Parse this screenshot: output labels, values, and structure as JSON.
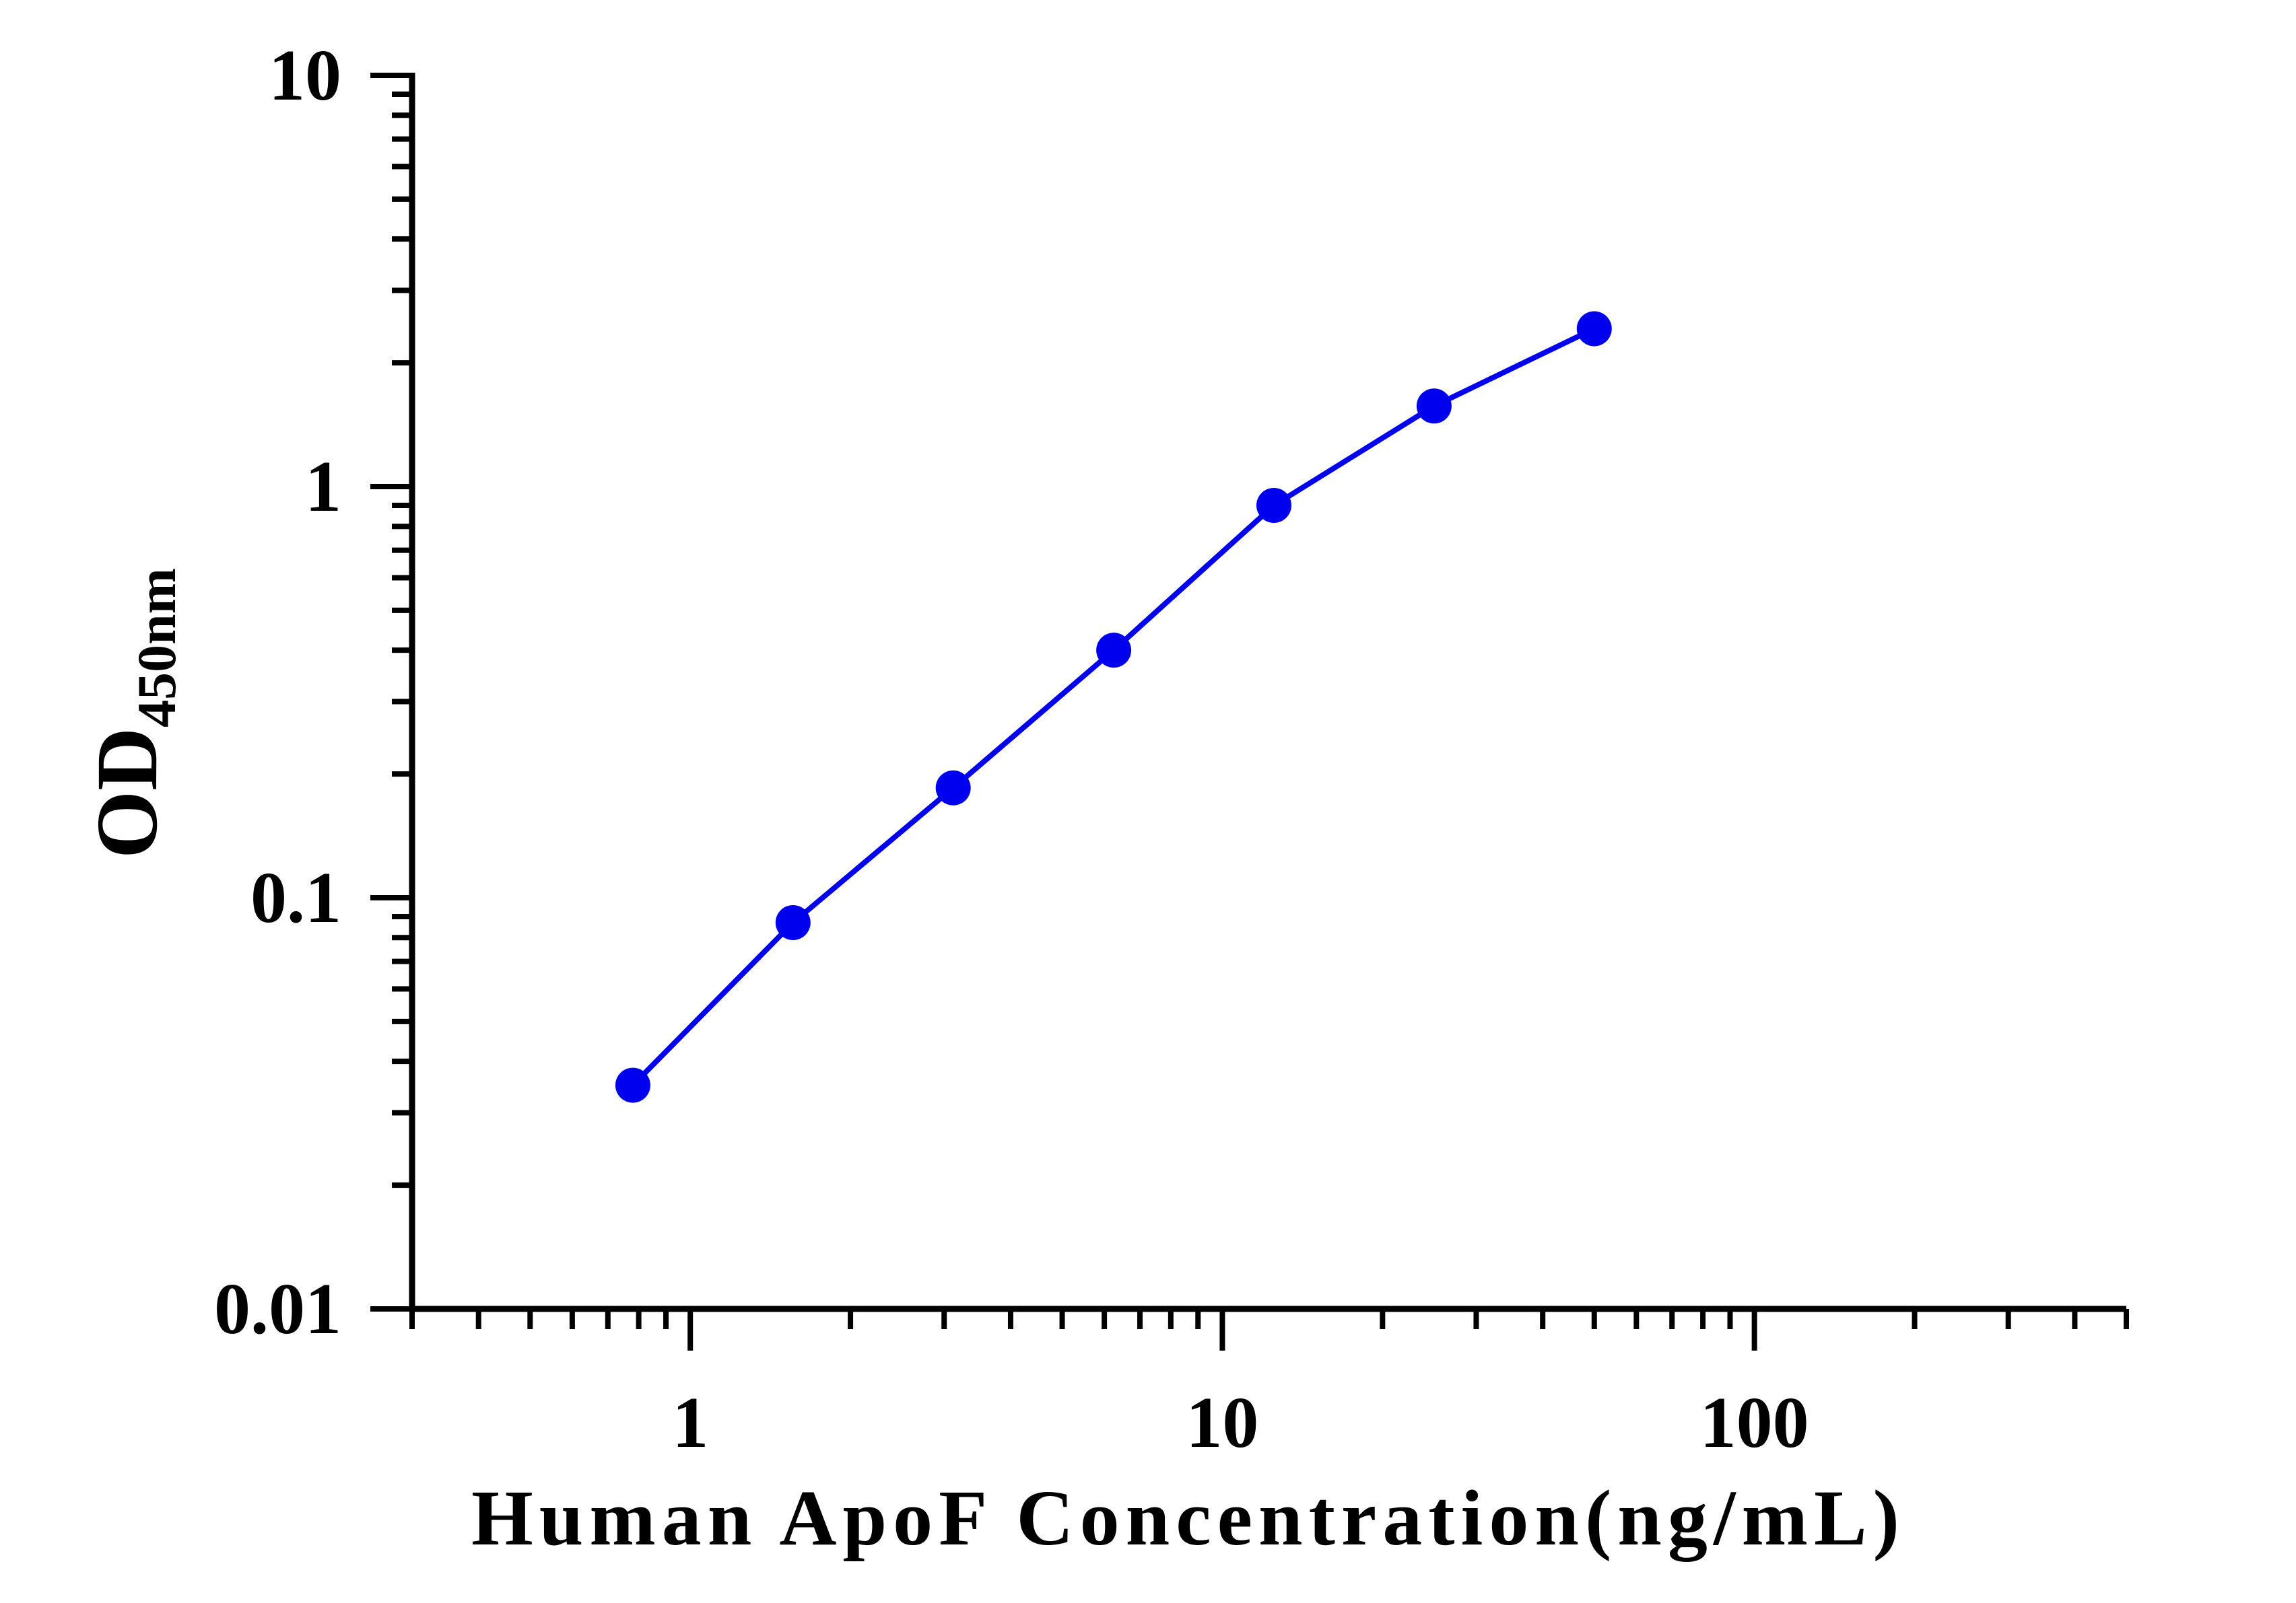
{
  "chart_data": {
    "type": "line",
    "xlabel": "Human ApoF Concentration(ng/mL)",
    "ylabel_main": "OD",
    "ylabel_sub": "450nm",
    "x_scale": "log",
    "y_scale": "log",
    "xlim": [
      0.3,
      500
    ],
    "ylim": [
      0.01,
      10
    ],
    "x_ticks": [
      {
        "value": 1,
        "label": "1"
      },
      {
        "value": 10,
        "label": "10"
      },
      {
        "value": 100,
        "label": "100"
      }
    ],
    "y_ticks": [
      {
        "value": 0.01,
        "label": "0.01"
      },
      {
        "value": 0.1,
        "label": "0.1"
      },
      {
        "value": 1,
        "label": "1"
      },
      {
        "value": 10,
        "label": "10"
      }
    ],
    "grid": false,
    "series": [
      {
        "color": "#0000ee",
        "x": [
          0.78,
          1.56,
          3.12,
          6.25,
          12.5,
          25,
          50
        ],
        "y": [
          0.035,
          0.087,
          0.185,
          0.4,
          0.9,
          1.57,
          2.42
        ]
      }
    ]
  }
}
